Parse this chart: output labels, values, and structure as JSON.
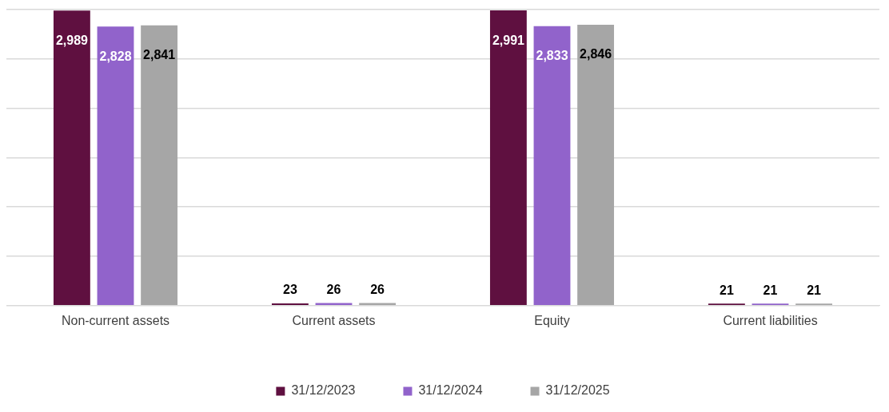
{
  "chart_data": {
    "type": "bar",
    "categories": [
      "Non-current assets",
      "Current assets",
      "Equity",
      "Current liabilities"
    ],
    "series": [
      {
        "name": "31/12/2023",
        "color": "#5f1040",
        "values": [
          2989,
          23,
          2991,
          21
        ],
        "value_labels": [
          "2,989",
          "23",
          "2,991",
          "21"
        ]
      },
      {
        "name": "31/12/2024",
        "color": "#9163cb",
        "values": [
          2828,
          26,
          2833,
          21
        ],
        "value_labels": [
          "2,828",
          "26",
          "2,833",
          "21"
        ]
      },
      {
        "name": "31/12/2025",
        "color": "#a6a6a6",
        "values": [
          2841,
          26,
          2846,
          21
        ],
        "value_labels": [
          "2,841",
          "26",
          "2,846",
          "21"
        ]
      }
    ],
    "ylim": [
      0,
      3000
    ],
    "yticks": [
      {
        "value": 0,
        "label": null
      },
      {
        "value": 500,
        "label": null
      },
      {
        "value": 1000,
        "label": null
      },
      {
        "value": 1500,
        "label": null
      },
      {
        "value": 2000,
        "label": null
      },
      {
        "value": 2500,
        "label": null
      },
      {
        "value": 3000,
        "label": null
      }
    ],
    "tick_labels": "x",
    "grid": "y",
    "legend": "bottom"
  }
}
